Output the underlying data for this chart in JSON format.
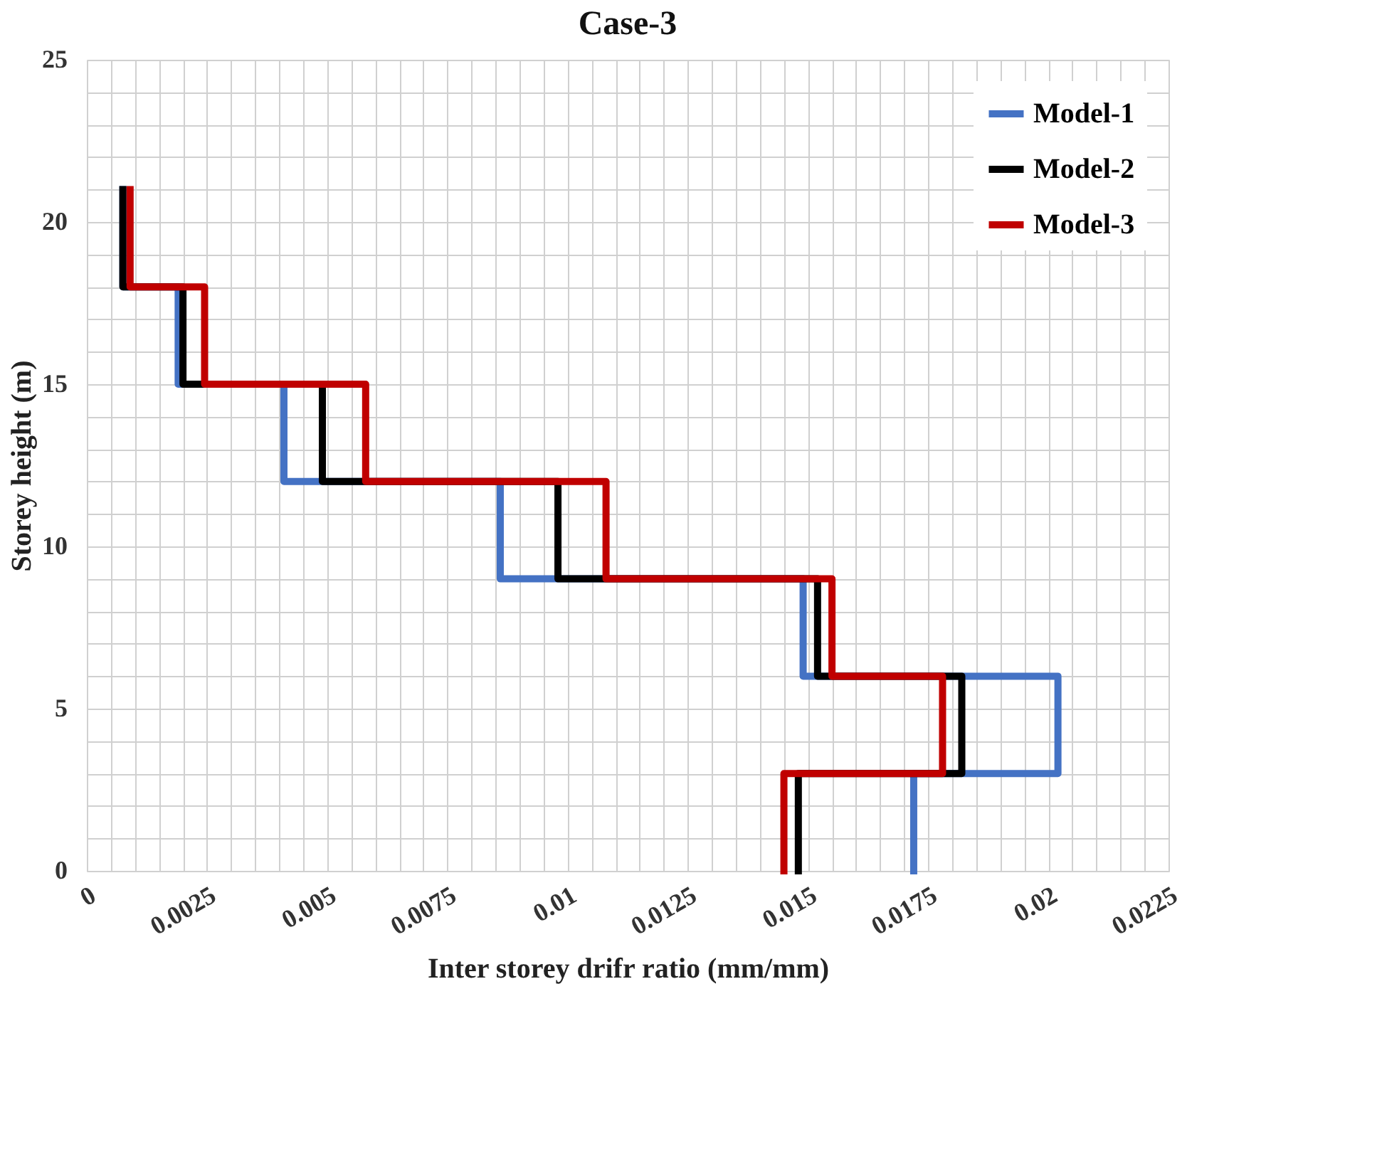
{
  "chart_data": {
    "type": "line",
    "title": "Case-3",
    "xlabel": "Inter storey drifr ratio (mm/mm)",
    "ylabel": "Storey height (m)",
    "xlim": [
      0,
      0.0225
    ],
    "ylim": [
      0,
      25
    ],
    "xticks": [
      0,
      {
        "value": 0.0005,
        "label": null
      },
      {
        "value": 0.001,
        "label": null
      },
      {
        "value": 0.0015,
        "label": null
      },
      {
        "value": 0.002,
        "label": null
      },
      0.0025,
      {
        "value": 0.003,
        "label": null
      },
      {
        "value": 0.0035,
        "label": null
      },
      {
        "value": 0.004,
        "label": null
      },
      {
        "value": 0.0045,
        "label": null
      },
      0.005,
      {
        "value": 0.0055,
        "label": null
      },
      {
        "value": 0.006,
        "label": null
      },
      {
        "value": 0.0065,
        "label": null
      },
      {
        "value": 0.007,
        "label": null
      },
      0.0075,
      {
        "value": 0.008,
        "label": null
      },
      {
        "value": 0.0085,
        "label": null
      },
      {
        "value": 0.009,
        "label": null
      },
      {
        "value": 0.0095,
        "label": null
      },
      0.01,
      {
        "value": 0.0105,
        "label": null
      },
      {
        "value": 0.011,
        "label": null
      },
      {
        "value": 0.0115,
        "label": null
      },
      {
        "value": 0.012,
        "label": null
      },
      0.0125,
      {
        "value": 0.013,
        "label": null
      },
      {
        "value": 0.0135,
        "label": null
      },
      {
        "value": 0.014,
        "label": null
      },
      {
        "value": 0.0145,
        "label": null
      },
      0.015,
      {
        "value": 0.0155,
        "label": null
      },
      {
        "value": 0.016,
        "label": null
      },
      {
        "value": 0.0165,
        "label": null
      },
      {
        "value": 0.017,
        "label": null
      },
      0.0175,
      {
        "value": 0.018,
        "label": null
      },
      {
        "value": 0.0185,
        "label": null
      },
      {
        "value": 0.019,
        "label": null
      },
      {
        "value": 0.0195,
        "label": null
      },
      0.02,
      {
        "value": 0.0205,
        "label": null
      },
      {
        "value": 0.021,
        "label": null
      },
      {
        "value": 0.0215,
        "label": null
      },
      {
        "value": 0.022,
        "label": null
      },
      0.0225
    ],
    "yticks": [
      0,
      {
        "value": 1,
        "label": null
      },
      {
        "value": 2,
        "label": null
      },
      {
        "value": 3,
        "label": null
      },
      {
        "value": 4,
        "label": null
      },
      5,
      {
        "value": 6,
        "label": null
      },
      {
        "value": 7,
        "label": null
      },
      {
        "value": 8,
        "label": null
      },
      {
        "value": 9,
        "label": null
      },
      10,
      {
        "value": 11,
        "label": null
      },
      {
        "value": 12,
        "label": null
      },
      {
        "value": 13,
        "label": null
      },
      {
        "value": 14,
        "label": null
      },
      15,
      {
        "value": 16,
        "label": null
      },
      {
        "value": 17,
        "label": null
      },
      {
        "value": 18,
        "label": null
      },
      {
        "value": 19,
        "label": null
      },
      20,
      {
        "value": 21,
        "label": null
      },
      {
        "value": 22,
        "label": null
      },
      {
        "value": 23,
        "label": null
      },
      {
        "value": 24,
        "label": null
      },
      25
    ],
    "grid": true,
    "legend": "top right",
    "line_style": "solid",
    "series": [
      {
        "name": "Model-1",
        "color": "#4472c4",
        "x": [
          0.0172,
          0.0172,
          0.0202,
          0.0202,
          0.0149,
          0.0149,
          0.0086,
          0.0086,
          0.0041,
          0.0041,
          0.0019,
          0.0019,
          0.00075,
          0.00075
        ],
        "values": [
          0,
          3,
          3,
          6,
          6,
          9,
          9,
          12,
          12,
          15,
          15,
          18,
          18,
          21
        ]
      },
      {
        "name": "Model-2",
        "color": "#000000",
        "x": [
          0.0148,
          0.0148,
          0.0182,
          0.0182,
          0.0152,
          0.0152,
          0.0098,
          0.0098,
          0.0049,
          0.0049,
          0.002,
          0.002,
          0.00075,
          0.00075
        ],
        "values": [
          0,
          3,
          3,
          6,
          6,
          9,
          9,
          12,
          12,
          15,
          15,
          18,
          18,
          21
        ]
      },
      {
        "name": "Model-3",
        "color": "#c00000",
        "x": [
          0.0145,
          0.0145,
          0.0178,
          0.0178,
          0.0155,
          0.0155,
          0.0108,
          0.0108,
          0.0058,
          0.0058,
          0.00245,
          0.00245,
          0.0009,
          0.0009
        ],
        "values": [
          0,
          3,
          3,
          6,
          6,
          9,
          9,
          12,
          12,
          15,
          15,
          18,
          18,
          21
        ]
      }
    ]
  }
}
